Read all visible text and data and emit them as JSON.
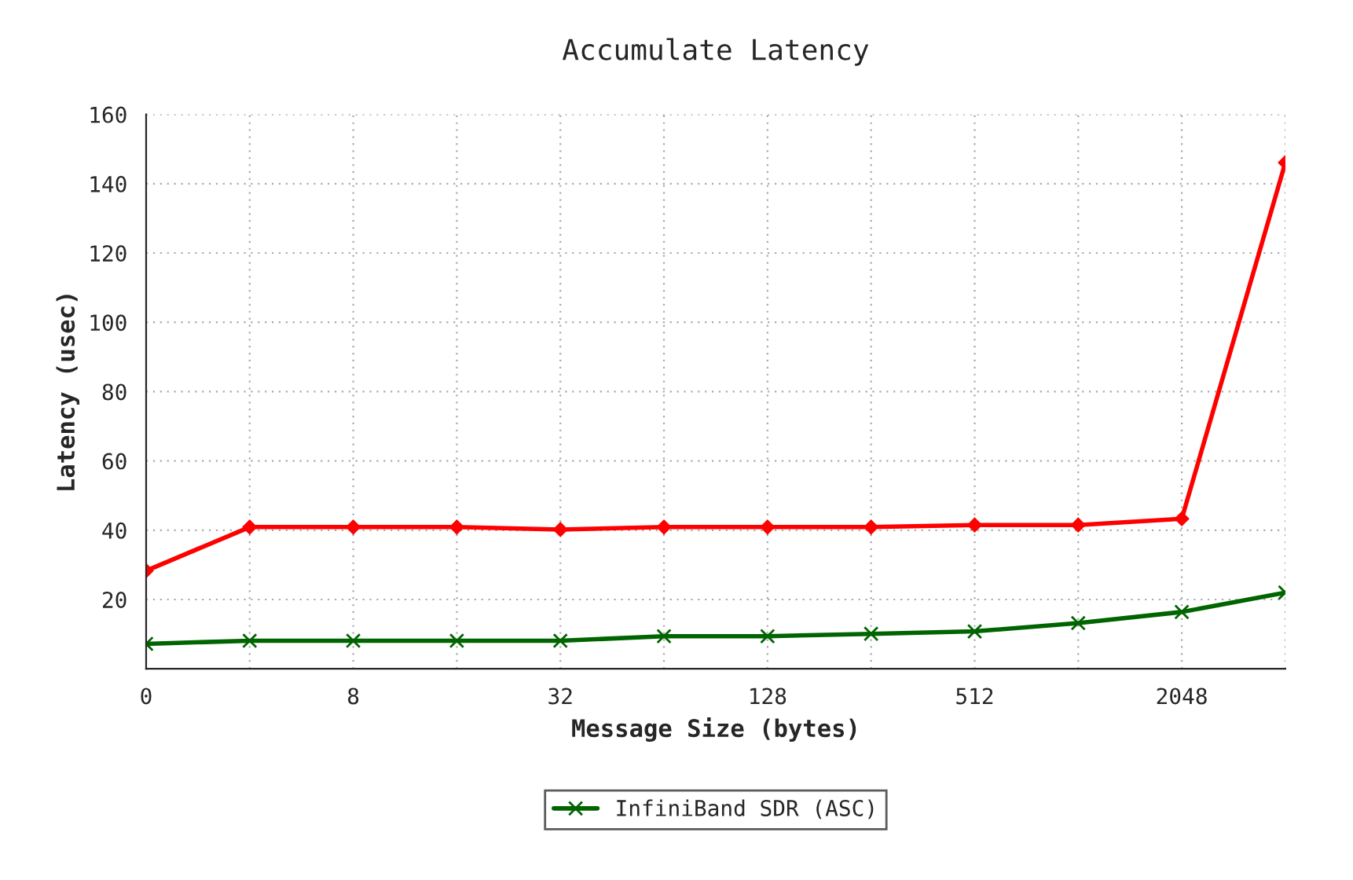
{
  "chart_data": {
    "type": "line",
    "title": "Accumulate Latency",
    "xlabel": "Message Size (bytes)",
    "ylabel": "Latency (usec)",
    "categories": [
      "0",
      null,
      "8",
      null,
      "32",
      null,
      "128",
      null,
      "512",
      null,
      "2048",
      null
    ],
    "series": [
      {
        "name": "InfiniBand SDR (ASC)",
        "color": "#006400",
        "marker": "cross",
        "values": [
          7.2,
          8.1,
          8.1,
          8.1,
          8.1,
          9.4,
          9.4,
          10.1,
          10.8,
          13.2,
          16.4,
          22
        ]
      },
      {
        "color": "#ff0000",
        "marker": "diamond",
        "values": [
          28.3,
          40.9,
          40.9,
          40.9,
          40.2,
          40.9,
          40.9,
          40.9,
          41.5,
          41.5,
          43.3,
          146.1
        ]
      }
    ],
    "ylim": [
      0,
      160
    ],
    "yticks": [
      {
        "value": 0,
        "label": null
      },
      20,
      40,
      60,
      80,
      100,
      120,
      140,
      160
    ],
    "grid": true,
    "legend": "bottom",
    "line_style": "solid"
  }
}
